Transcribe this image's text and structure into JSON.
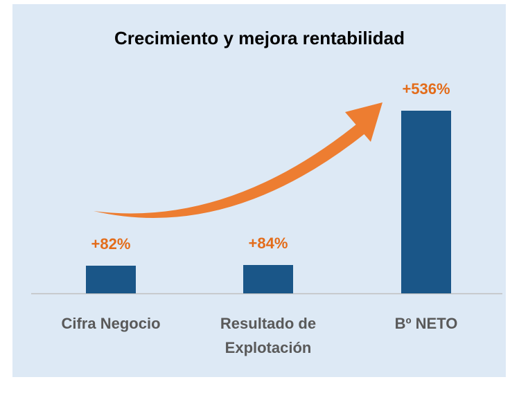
{
  "chart_data": {
    "type": "bar",
    "title": "Crecimiento y mejora rentabilidad",
    "categories": [
      "Cifra Negocio",
      "Resultado de Explotación",
      "Bº NETO"
    ],
    "values": [
      82,
      84,
      536
    ],
    "value_labels": [
      "+82%",
      "+84%",
      "+536%"
    ],
    "color": "#1a5688",
    "label_color": "#e36c1a"
  }
}
